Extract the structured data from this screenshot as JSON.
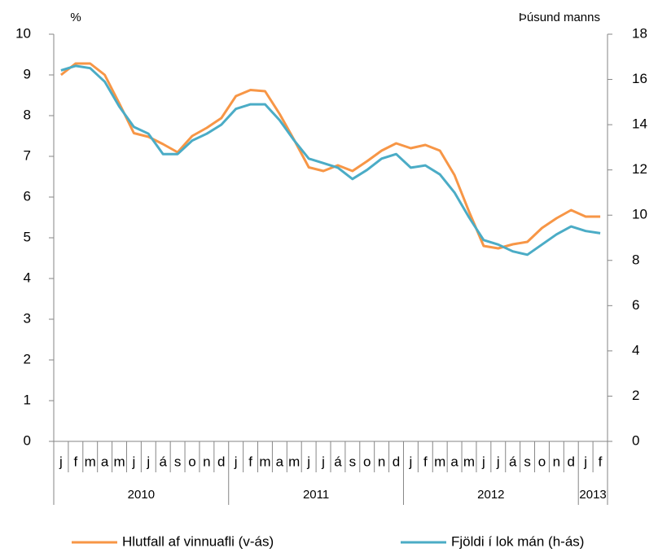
{
  "chart_data": {
    "type": "line",
    "y_label": "%",
    "y2_label": "Þúsund manns",
    "category_groups": [
      {
        "name": "2010",
        "categories": [
          "j",
          "f",
          "m",
          "a",
          "m",
          "j",
          "j",
          "á",
          "s",
          "o",
          "n",
          "d"
        ]
      },
      {
        "name": "2011",
        "categories": [
          "j",
          "f",
          "m",
          "a",
          "m",
          "j",
          "j",
          "á",
          "s",
          "o",
          "n",
          "d"
        ]
      },
      {
        "name": "2012",
        "categories": [
          "j",
          "f",
          "m",
          "a",
          "m",
          "j",
          "j",
          "á",
          "s",
          "o",
          "n",
          "d"
        ]
      },
      {
        "name": "2013",
        "categories": [
          "j",
          "f"
        ]
      }
    ],
    "ylim": [
      0,
      10
    ],
    "yticks": [
      0,
      1,
      2,
      3,
      4,
      5,
      6,
      7,
      8,
      9,
      10
    ],
    "y2lim": [
      0,
      18
    ],
    "y2ticks": [
      0,
      2,
      4,
      6,
      8,
      10,
      12,
      14,
      16,
      18
    ],
    "legend": "bottom",
    "series": [
      {
        "name": "Hlutfall af vinnuafli (v-ás)",
        "color": "#f79646",
        "values": [
          9.0,
          9.28,
          9.28,
          9.0,
          8.3,
          7.57,
          7.48,
          7.3,
          7.1,
          7.5,
          7.7,
          7.94,
          8.48,
          8.63,
          8.6,
          8.04,
          7.4,
          6.73,
          6.64,
          6.78,
          6.64,
          6.88,
          7.14,
          7.32,
          7.2,
          7.28,
          7.14,
          6.54,
          5.64,
          4.8,
          4.74,
          4.84,
          4.9,
          5.24,
          5.48,
          5.68,
          5.52,
          5.52
        ]
      },
      {
        "name": "Fjöldi í lok mán (h-ás)",
        "color": "#4bacc6",
        "axis": "y2",
        "values": [
          16.4,
          16.6,
          16.5,
          15.9,
          14.8,
          13.9,
          13.6,
          12.7,
          12.7,
          13.3,
          13.6,
          14.0,
          14.7,
          14.9,
          14.9,
          14.2,
          13.3,
          12.5,
          12.3,
          12.1,
          11.6,
          12.0,
          12.5,
          12.7,
          12.1,
          12.2,
          11.8,
          11.0,
          9.9,
          8.9,
          8.7,
          8.4,
          8.25,
          8.7,
          9.15,
          9.5,
          9.3,
          9.2
        ]
      }
    ]
  }
}
